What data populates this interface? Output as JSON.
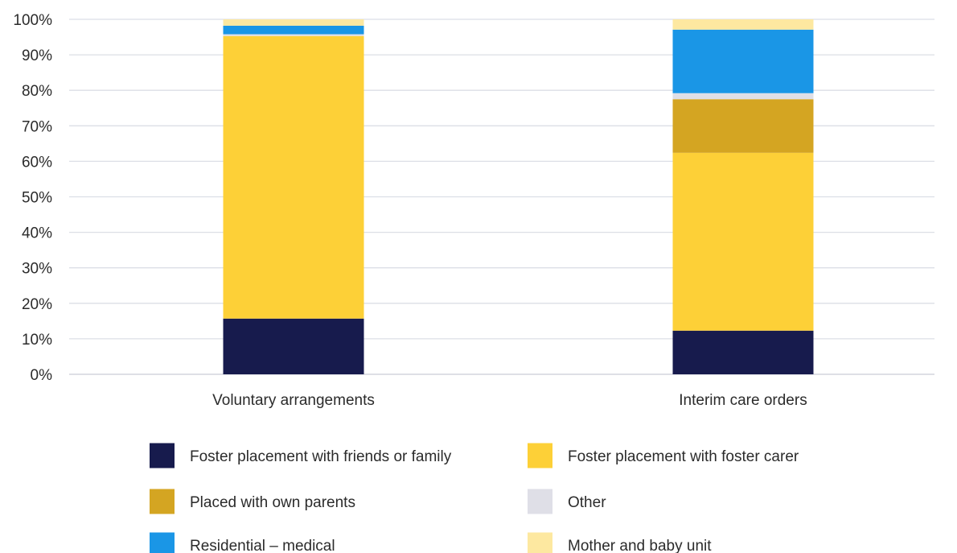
{
  "chart_data": {
    "type": "bar",
    "stacked": true,
    "percent": true,
    "title": "",
    "xlabel": "",
    "ylabel": "",
    "ylim": [
      0,
      100
    ],
    "yticks": [
      "0%",
      "10%",
      "20%",
      "30%",
      "40%",
      "50%",
      "60%",
      "70%",
      "80%",
      "90%",
      "100%"
    ],
    "grid": true,
    "legend_position": "bottom",
    "categories": [
      "Voluntary arrangements",
      "Interim care orders"
    ],
    "series": [
      {
        "name": "Foster placement with friends or family",
        "color": "#171b4d",
        "values": [
          15.7,
          12.3
        ]
      },
      {
        "name": "Foster placement with foster carer",
        "color": "#fdd037",
        "values": [
          79.6,
          50.1
        ]
      },
      {
        "name": "Placed with own parents",
        "color": "#d4a522",
        "values": [
          0.0,
          15.1
        ]
      },
      {
        "name": "Other",
        "color": "#dfdfe7",
        "values": [
          0.5,
          1.7
        ]
      },
      {
        "name": "Residential – medical",
        "color": "#1a96e6",
        "values": [
          2.4,
          17.9
        ]
      },
      {
        "name": "Mother and baby unit",
        "color": "#fde8a0",
        "values": [
          1.8,
          2.9
        ]
      }
    ]
  }
}
